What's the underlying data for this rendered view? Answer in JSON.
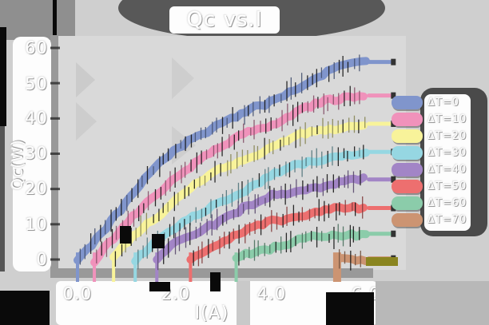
{
  "title": "Qc vs.I",
  "axes": {
    "ylabel": "Qc(W)",
    "xlabel": "I(A)",
    "y_ticks": [
      "60",
      "50",
      "40",
      "30",
      "20",
      "10",
      "0"
    ],
    "x_ticks": [
      "0.0",
      "2.0",
      "4.0",
      "6.0"
    ],
    "y_tick_values": [
      60,
      50,
      40,
      30,
      20,
      10,
      0
    ],
    "x_tick_values": [
      0.0,
      2.0,
      4.0,
      6.0
    ]
  },
  "legend": {
    "position": "right",
    "entries": [
      "ΔT=0",
      "ΔT=10",
      "ΔT=20",
      "ΔT=30",
      "ΔT=40",
      "ΔT=50",
      "ΔT=60",
      "ΔT=70"
    ]
  },
  "chart_data": {
    "type": "line",
    "title": "Qc vs.I",
    "xlabel": "I(A)",
    "ylabel": "Qc(W)",
    "xlim": [
      0,
      6.6
    ],
    "ylim": [
      0,
      60
    ],
    "grid": false,
    "legend_position": "right",
    "style_note": "thick wavy bands with dense vertical error-bar ticks; flat thin end caps after I=6",
    "series": [
      {
        "name": "ΔT=0",
        "color": "#8095cc",
        "points": [
          [
            0,
            0
          ],
          [
            0.5,
            8
          ],
          [
            1,
            16
          ],
          [
            1.5,
            24
          ],
          [
            2,
            31
          ],
          [
            2.5,
            35.5
          ],
          [
            3,
            38.5
          ],
          [
            3.5,
            41.5
          ],
          [
            4,
            44.5
          ],
          [
            4.5,
            48.5
          ],
          [
            5,
            52
          ],
          [
            5.5,
            54.5
          ],
          [
            6,
            56
          ]
        ]
      },
      {
        "name": "ΔT=10",
        "color": "#f092bb",
        "points": [
          [
            0.35,
            0
          ],
          [
            0.5,
            2.5
          ],
          [
            1,
            9.5
          ],
          [
            1.5,
            16.5
          ],
          [
            2,
            23
          ],
          [
            2.5,
            28
          ],
          [
            3,
            32
          ],
          [
            3.5,
            35.5
          ],
          [
            4,
            38.5
          ],
          [
            4.5,
            41.5
          ],
          [
            5,
            44
          ],
          [
            5.5,
            45.5
          ],
          [
            6,
            46.5
          ]
        ]
      },
      {
        "name": "ΔT=20",
        "color": "#f8f39a",
        "points": [
          [
            0.75,
            0
          ],
          [
            1,
            4.5
          ],
          [
            1.5,
            11
          ],
          [
            2,
            16.5
          ],
          [
            2.5,
            21.5
          ],
          [
            3,
            25.5
          ],
          [
            3.5,
            29
          ],
          [
            4,
            32
          ],
          [
            4.5,
            34.5
          ],
          [
            5,
            36.5
          ],
          [
            5.5,
            37.7
          ],
          [
            6,
            38.5
          ]
        ]
      },
      {
        "name": "ΔT=30",
        "color": "#96d7e2",
        "points": [
          [
            1.2,
            0
          ],
          [
            1.5,
            4
          ],
          [
            2,
            8.5
          ],
          [
            2.5,
            12.5
          ],
          [
            3,
            16.5
          ],
          [
            3.5,
            20
          ],
          [
            4,
            23.5
          ],
          [
            4.5,
            26.3
          ],
          [
            5,
            28.3
          ],
          [
            5.5,
            29.6
          ],
          [
            6,
            30.5
          ]
        ]
      },
      {
        "name": "ΔT=40",
        "color": "#a285c6",
        "points": [
          [
            1.65,
            0
          ],
          [
            2,
            4
          ],
          [
            2.5,
            8
          ],
          [
            3,
            11.5
          ],
          [
            3.5,
            14.8
          ],
          [
            4,
            17.5
          ],
          [
            4.5,
            19.5
          ],
          [
            5,
            21
          ],
          [
            5.5,
            22
          ],
          [
            6,
            22.7
          ]
        ]
      },
      {
        "name": "ΔT=50",
        "color": "#ed6f6f",
        "points": [
          [
            2.35,
            0
          ],
          [
            2.5,
            1.5
          ],
          [
            3,
            5
          ],
          [
            3.5,
            8
          ],
          [
            4,
            10.8
          ],
          [
            4.5,
            12.4
          ],
          [
            5,
            13.5
          ],
          [
            5.5,
            14.2
          ],
          [
            6,
            14.6
          ]
        ]
      },
      {
        "name": "ΔT=60",
        "color": "#8bccaa",
        "points": [
          [
            3.3,
            0
          ],
          [
            3.5,
            1.5
          ],
          [
            4,
            3.5
          ],
          [
            4.5,
            5.2
          ],
          [
            5,
            6.2
          ],
          [
            5.5,
            6.9
          ],
          [
            6,
            7.3
          ]
        ]
      },
      {
        "name": "ΔT=70",
        "color": "#cc9472",
        "points": [
          [
            5.4,
            0.6
          ],
          [
            5.6,
            0.2
          ],
          [
            5.8,
            0.1
          ],
          [
            6,
            0.3
          ]
        ]
      }
    ]
  },
  "style": {
    "page_bg": "#cfcfcf",
    "plot_bg": "#d9d9d9",
    "axis_band": "#999999",
    "title_blob": "#585858",
    "legend_blob": "#4a4a4a",
    "panel_white": "#fdfdfd",
    "text_white": "#ffffff",
    "artifact_olive": "#8a8520",
    "artifact_black": "#0a0a0a"
  }
}
